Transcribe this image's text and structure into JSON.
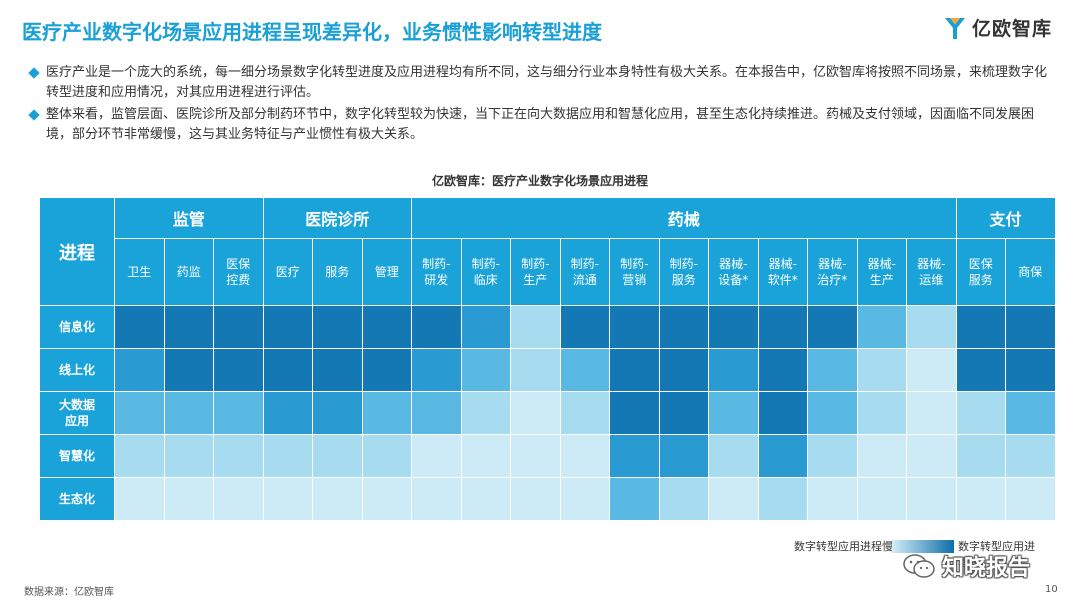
{
  "title": "医疗产业数字化场景应用进程呈现差异化，业务惯性影响转型进度",
  "logo": {
    "text": "亿欧智库",
    "icon": "yiou-logo-icon"
  },
  "bullets": [
    "医疗产业是一个庞大的系统，每一细分场景数字化转型进度及应用进程均有所不同，这与细分行业本身特性有极大关系。在本报告中，亿欧智库将按照不同场景，来梳理数字化转型进度和应用情况，对其应用进程进行评估。",
    "整体来看，监管层面、医院诊所及部分制药环节中，数字化转型较为快速，当下正在向大数据应用和智慧化应用，甚至生态化持续推进。药械及支付领域，因面临不同发展困境，部分环节非常缓慢，这与其业务特征与产业惯性有极大关系。"
  ],
  "chart_data": {
    "type": "heatmap",
    "title": "亿欧智库：医疗产业数字化场景应用进程",
    "corner_label": "进程",
    "groups": [
      {
        "name": "监管",
        "span": 3
      },
      {
        "name": "医院诊所",
        "span": 3
      },
      {
        "name": "药械",
        "span": 11
      },
      {
        "name": "支付",
        "span": 2
      }
    ],
    "columns": [
      [
        "卫生"
      ],
      [
        "药监"
      ],
      [
        "医保",
        "控费"
      ],
      [
        "医疗"
      ],
      [
        "服务"
      ],
      [
        "管理"
      ],
      [
        "制药-",
        "研发"
      ],
      [
        "制药-",
        "临床"
      ],
      [
        "制药-",
        "生产"
      ],
      [
        "制药-",
        "流通"
      ],
      [
        "制药-",
        "营销"
      ],
      [
        "制药-",
        "服务"
      ],
      [
        "器械-",
        "设备*"
      ],
      [
        "器械-",
        "软件*"
      ],
      [
        "器械-",
        "治疗*"
      ],
      [
        "器械-",
        "生产"
      ],
      [
        "器械-",
        "运维"
      ],
      [
        "医保",
        "服务"
      ],
      [
        "商保"
      ]
    ],
    "rows": [
      [
        "信息化"
      ],
      [
        "线上化"
      ],
      [
        "大数据",
        "应用"
      ],
      [
        "智慧化"
      ],
      [
        "生态化"
      ]
    ],
    "scale": "1 = 数字转型应用进程慢, 5 = 数字转型应用进程快",
    "values": [
      [
        5,
        5,
        5,
        5,
        5,
        5,
        5,
        4,
        2,
        5,
        5,
        5,
        5,
        5,
        5,
        3,
        2,
        5,
        5
      ],
      [
        4,
        5,
        5,
        5,
        5,
        5,
        4,
        3,
        2,
        3,
        5,
        5,
        4,
        5,
        3,
        2,
        1,
        5,
        5
      ],
      [
        3,
        3,
        3,
        4,
        4,
        3,
        3,
        2,
        1,
        2,
        5,
        5,
        3,
        5,
        3,
        2,
        1,
        2,
        3
      ],
      [
        2,
        2,
        2,
        2,
        2,
        2,
        1,
        1,
        1,
        1,
        4,
        4,
        2,
        4,
        2,
        1,
        1,
        2,
        2
      ],
      [
        1,
        1,
        1,
        1,
        1,
        1,
        1,
        1,
        1,
        1,
        3,
        2,
        1,
        2,
        1,
        1,
        1,
        1,
        1
      ]
    ],
    "palette": [
      "#cdebf6",
      "#a6dbf0",
      "#5ab9e2",
      "#2a9ad2",
      "#1478b4"
    ],
    "legend": {
      "low": "数字转型应用进程慢",
      "high": "数字转型应用进程快"
    }
  },
  "watermark": {
    "text": "知晓报告",
    "icon": "wechat-icon"
  },
  "source": "数据来源：亿欧智库",
  "page_number": "10"
}
